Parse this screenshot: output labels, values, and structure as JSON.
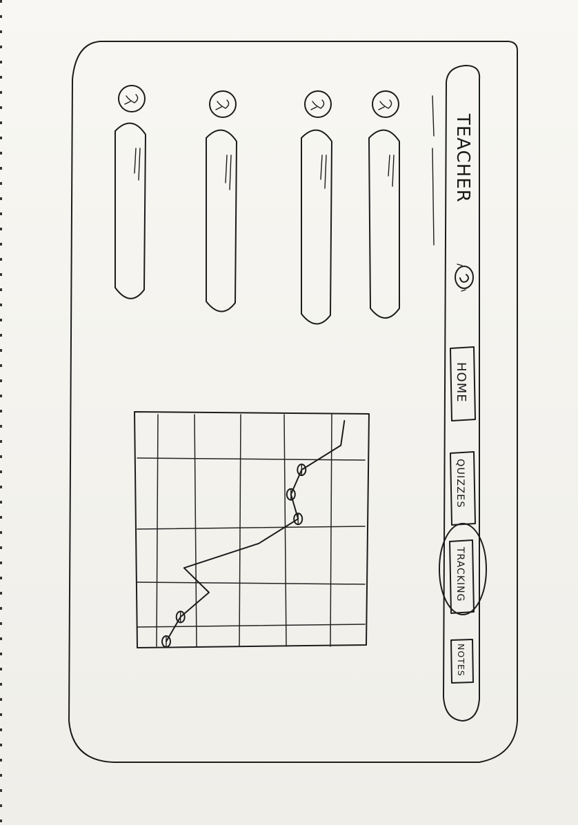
{
  "header": {
    "title": "TEACHER",
    "search_icon": "search-icon"
  },
  "nav": {
    "items": [
      {
        "label": "HOME",
        "active": false
      },
      {
        "label": "QUIZZES",
        "active": false
      },
      {
        "label": "TRACKING",
        "active": true
      },
      {
        "label": "NOTES",
        "active": false
      }
    ]
  },
  "list": {
    "rows": [
      {
        "avatar_icon": "user-avatar-icon"
      },
      {
        "avatar_icon": "user-avatar-icon"
      },
      {
        "avatar_icon": "user-avatar-icon"
      },
      {
        "avatar_icon": "user-avatar-icon"
      }
    ]
  },
  "chart_data": {
    "type": "line",
    "title": "",
    "xlabel": "",
    "ylabel": "",
    "grid": true,
    "x": [
      0,
      1,
      2,
      3,
      4,
      5,
      6,
      7,
      8,
      9
    ],
    "series": [
      {
        "values": [
          5.6,
          5.5,
          4.4,
          4.1,
          4.3,
          3.2,
          1.1,
          1.8,
          1.0,
          0.6
        ]
      }
    ],
    "markers_at": [
      2,
      3,
      4,
      8,
      9
    ],
    "xlim": [
      0,
      9
    ],
    "ylim": [
      0,
      6
    ]
  }
}
